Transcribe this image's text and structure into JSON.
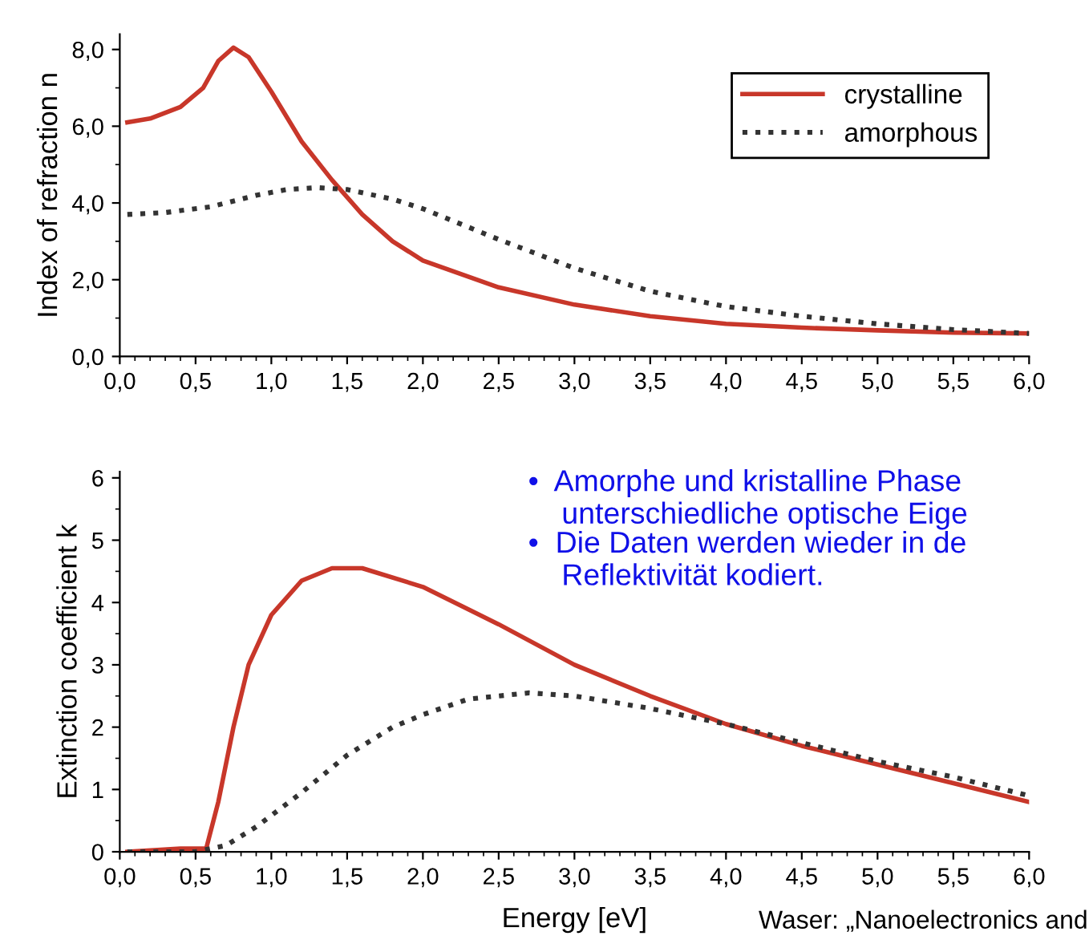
{
  "chart_data": [
    {
      "type": "line",
      "ylabel": "Index of refraction n",
      "legend": "top right",
      "grid": false,
      "marker": "none",
      "xlim": [
        0,
        6
      ],
      "ylim": [
        0,
        8.4
      ],
      "xticks": [
        {
          "value": 0,
          "label": "0,0"
        },
        {
          "value": 0.5,
          "label": "0,5"
        },
        {
          "value": 1,
          "label": "1,0"
        },
        {
          "value": 1.5,
          "label": "1,5"
        },
        {
          "value": 2,
          "label": "2,0"
        },
        {
          "value": 2.5,
          "label": "2,5"
        },
        {
          "value": 3,
          "label": "3,0"
        },
        {
          "value": 3.5,
          "label": "3,5"
        },
        {
          "value": 4,
          "label": "4,0"
        },
        {
          "value": 4.5,
          "label": "4,5"
        },
        {
          "value": 5,
          "label": "5,0"
        },
        {
          "value": 5.5,
          "label": "5,5"
        },
        {
          "value": 6,
          "label": "6,0"
        }
      ],
      "yticks": [
        {
          "value": 0,
          "label": "0,0"
        },
        {
          "value": 2,
          "label": "2,0"
        },
        {
          "value": 4,
          "label": "4,0"
        },
        {
          "value": 6,
          "label": "6,0"
        },
        {
          "value": 8,
          "label": "8,0"
        }
      ],
      "series": [
        {
          "name": "crystalline",
          "color": "#c8372a",
          "line_style": "solid",
          "x": [
            0.05,
            0.2,
            0.4,
            0.55,
            0.65,
            0.75,
            0.85,
            1.0,
            1.2,
            1.4,
            1.6,
            1.8,
            2.0,
            2.5,
            3.0,
            3.5,
            4.0,
            4.5,
            5.0,
            5.5,
            6.0
          ],
          "values": [
            6.1,
            6.2,
            6.5,
            7.0,
            7.7,
            8.05,
            7.8,
            6.9,
            5.6,
            4.6,
            3.7,
            3.0,
            2.5,
            1.8,
            1.35,
            1.05,
            0.85,
            0.75,
            0.68,
            0.62,
            0.6
          ]
        },
        {
          "name": "amorphous",
          "color": "#333333",
          "line_style": "dotted",
          "x": [
            0.05,
            0.3,
            0.6,
            0.9,
            1.1,
            1.3,
            1.5,
            1.8,
            2.0,
            2.5,
            3.0,
            3.5,
            4.0,
            4.5,
            5.0,
            5.5,
            6.0
          ],
          "values": [
            3.7,
            3.75,
            3.9,
            4.2,
            4.35,
            4.4,
            4.35,
            4.1,
            3.85,
            3.05,
            2.3,
            1.7,
            1.3,
            1.05,
            0.85,
            0.7,
            0.6
          ]
        }
      ]
    },
    {
      "type": "line",
      "ylabel": "Extinction coefficient k",
      "xlabel": "Energy [eV]",
      "legend": false,
      "grid": false,
      "marker": "none",
      "xlim": [
        0,
        6
      ],
      "ylim": [
        0,
        6.1
      ],
      "xticks": [
        {
          "value": 0,
          "label": "0,0"
        },
        {
          "value": 0.5,
          "label": "0,5"
        },
        {
          "value": 1,
          "label": "1,0"
        },
        {
          "value": 1.5,
          "label": "1,5"
        },
        {
          "value": 2,
          "label": "2,0"
        },
        {
          "value": 2.5,
          "label": "2,5"
        },
        {
          "value": 3,
          "label": "3,0"
        },
        {
          "value": 3.5,
          "label": "3,5"
        },
        {
          "value": 4,
          "label": "4,0"
        },
        {
          "value": 4.5,
          "label": "4,5"
        },
        {
          "value": 5,
          "label": "5,0"
        },
        {
          "value": 5.5,
          "label": "5,5"
        },
        {
          "value": 6,
          "label": "6,0"
        }
      ],
      "yticks": [
        0,
        1,
        2,
        3,
        4,
        5,
        6
      ],
      "series": [
        {
          "color": "#c8372a",
          "line_style": "solid",
          "x": [
            0.05,
            0.4,
            0.57,
            0.65,
            0.75,
            0.85,
            1.0,
            1.2,
            1.4,
            1.6,
            2.0,
            2.5,
            3.0,
            3.5,
            4.0,
            4.5,
            5.0,
            5.5,
            6.0
          ],
          "values": [
            0,
            0.05,
            0.05,
            0.8,
            2.0,
            3.0,
            3.8,
            4.35,
            4.55,
            4.55,
            4.25,
            3.65,
            3.0,
            2.5,
            2.05,
            1.7,
            1.4,
            1.1,
            0.8
          ]
        },
        {
          "color": "#333333",
          "line_style": "dotted",
          "x": [
            0.05,
            0.5,
            0.7,
            0.9,
            1.2,
            1.5,
            1.8,
            2.0,
            2.3,
            2.7,
            3.0,
            3.5,
            4.0,
            4.5,
            5.0,
            5.5,
            6.0
          ],
          "values": [
            0,
            0,
            0.1,
            0.4,
            0.95,
            1.55,
            2.0,
            2.2,
            2.45,
            2.55,
            2.5,
            2.3,
            2.05,
            1.75,
            1.45,
            1.2,
            0.9
          ]
        }
      ],
      "annotations": [
        "•  Amorphe und kristalline Phase\n    unterschiedliche optische Eige",
        "•  Die Daten werden wieder in de\n    Reflektivität kodiert.",
        "Waser: „Nanoelectronics and"
      ]
    }
  ]
}
